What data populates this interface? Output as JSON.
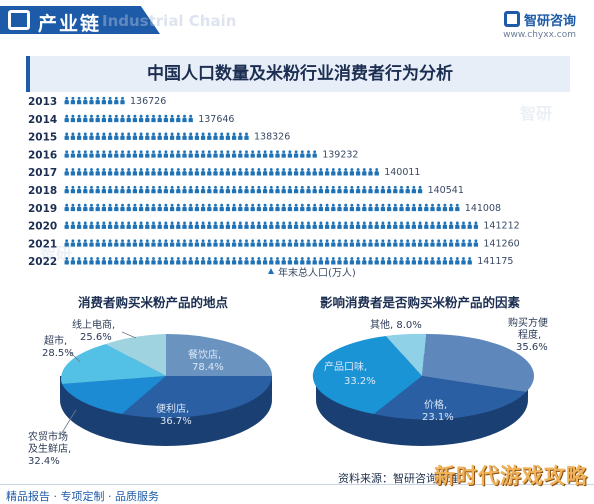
{
  "header": {
    "section_title": "产业链",
    "ghost_title": "Industrial Chain",
    "brand_name": "智研咨询",
    "brand_url": "www.chyxx.com"
  },
  "main": {
    "title": "中国人口数量及米粉行业消费者行为分析"
  },
  "chart_data": [
    {
      "type": "bar",
      "title": "",
      "categories": [
        "2013",
        "2014",
        "2015",
        "2016",
        "2017",
        "2018",
        "2019",
        "2020",
        "2021",
        "2022"
      ],
      "series": [
        {
          "name": "年末总人口(万人)",
          "values": [
            136726,
            137646,
            138326,
            139232,
            140011,
            140541,
            141008,
            141212,
            141260,
            141175
          ]
        }
      ],
      "xlabel": "",
      "ylabel": "",
      "legend": "bottom",
      "colors": {
        "person": "#1f72b6"
      }
    },
    {
      "type": "pie",
      "title": "消费者购买米粉产品的地点",
      "slices": [
        {
          "name": "餐饮店",
          "value": 78.4,
          "color": "#6b93c0"
        },
        {
          "name": "便利店",
          "value": 36.7,
          "color": "#2a5fa3"
        },
        {
          "name": "农贸市场及生鲜店",
          "value": 32.4,
          "color": "#1c8bd4"
        },
        {
          "name": "超市",
          "value": 28.5,
          "color": "#53c0e6"
        },
        {
          "name": "线上电商",
          "value": 25.6,
          "color": "#9ed3df"
        }
      ],
      "labels": {
        "canyin": "餐饮店,",
        "canyin_val": "78.4%",
        "bianli": "便利店,",
        "bianli_val": "36.7%",
        "nongmao_1": "农贸市场",
        "nongmao_2": "及生鲜店,",
        "nongmao_val": "32.4%",
        "chaoshi": "超市,",
        "chaoshi_val": "28.5%",
        "xianshang": "线上电商,",
        "xianshang_val": "25.6%"
      }
    },
    {
      "type": "pie",
      "title": "影响消费者是否购买米粉产品的因素",
      "slices": [
        {
          "name": "购买方便程度",
          "value": 35.6,
          "color": "#5e88bc"
        },
        {
          "name": "价格",
          "value": 23.1,
          "color": "#2a5fa3"
        },
        {
          "name": "产品口味",
          "value": 33.2,
          "color": "#1b94d6"
        },
        {
          "name": "其他",
          "value": 8.0,
          "color": "#8fd1e6"
        }
      ],
      "labels": {
        "goumai_1": "购买方便",
        "goumai_2": "程度,",
        "goumai_val": "35.6%",
        "jiage": "价格,",
        "jiage_val": "23.1%",
        "kouwei": "产品口味,",
        "kouwei_val": "33.2%",
        "qita": "其他, 8.0%"
      }
    }
  ],
  "footer": {
    "left": "精品报告 · 专项定制 · 品质服务",
    "right": "资料来源：智研咨询整理",
    "watermark": "新时代游戏攻略"
  }
}
